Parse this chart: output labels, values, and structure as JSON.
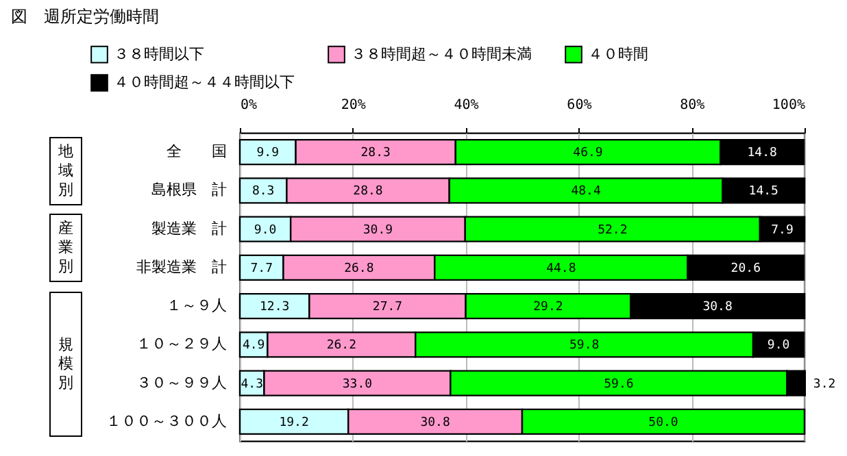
{
  "chart_data": {
    "type": "bar",
    "orientation": "horizontal",
    "stacked": true,
    "title": "図　週所定労働時間",
    "categories": [
      "全　　国",
      "島根県　計",
      "製造業　計",
      "非製造業　計",
      "１～９人",
      "１０～２９人",
      "３０～９９人",
      "１００～３００人"
    ],
    "series": [
      {
        "name": "３８時間以下",
        "color": "#ccffff",
        "values": [
          9.9,
          8.3,
          9.0,
          7.7,
          12.3,
          4.9,
          4.3,
          19.2
        ],
        "value_labels": [
          "9.9",
          "8.3",
          "9.0",
          "7.7",
          "12.3",
          "4.9",
          "4.3",
          "19.2"
        ]
      },
      {
        "name": "３８時間超～４０時間未満",
        "color": "#ff99cc",
        "values": [
          28.3,
          28.8,
          30.9,
          26.8,
          27.7,
          26.2,
          33.0,
          30.8
        ],
        "value_labels": [
          "28.3",
          "28.8",
          "30.9",
          "26.8",
          "27.7",
          "26.2",
          "33.0",
          "30.8"
        ]
      },
      {
        "name": "４０時間",
        "color": "#00ff00",
        "values": [
          46.9,
          48.4,
          52.2,
          44.8,
          29.2,
          59.8,
          59.6,
          50.0
        ],
        "value_labels": [
          "46.9",
          "48.4",
          "52.2",
          "44.8",
          "29.2",
          "59.8",
          "59.6",
          "50.0"
        ]
      },
      {
        "name": "４０時間超～４４時間以下",
        "color": "#000000",
        "values": [
          14.8,
          14.5,
          7.9,
          20.6,
          30.8,
          9.0,
          3.2,
          null
        ],
        "value_labels": [
          "14.8",
          "14.5",
          "7.9",
          "20.6",
          "30.8",
          "9.0",
          "3.2",
          null
        ]
      }
    ],
    "xlim": [
      0,
      100
    ],
    "xticks": [
      {
        "value": 0,
        "label": "0%"
      },
      {
        "value": 20,
        "label": "20%"
      },
      {
        "value": 40,
        "label": "40%"
      },
      {
        "value": 60,
        "label": "60%"
      },
      {
        "value": 80,
        "label": "80%"
      },
      {
        "value": 100,
        "label": "100%"
      }
    ],
    "grid": "x",
    "legend": "top",
    "annotations": [
      "地域別",
      "産業別",
      "規模別"
    ]
  }
}
